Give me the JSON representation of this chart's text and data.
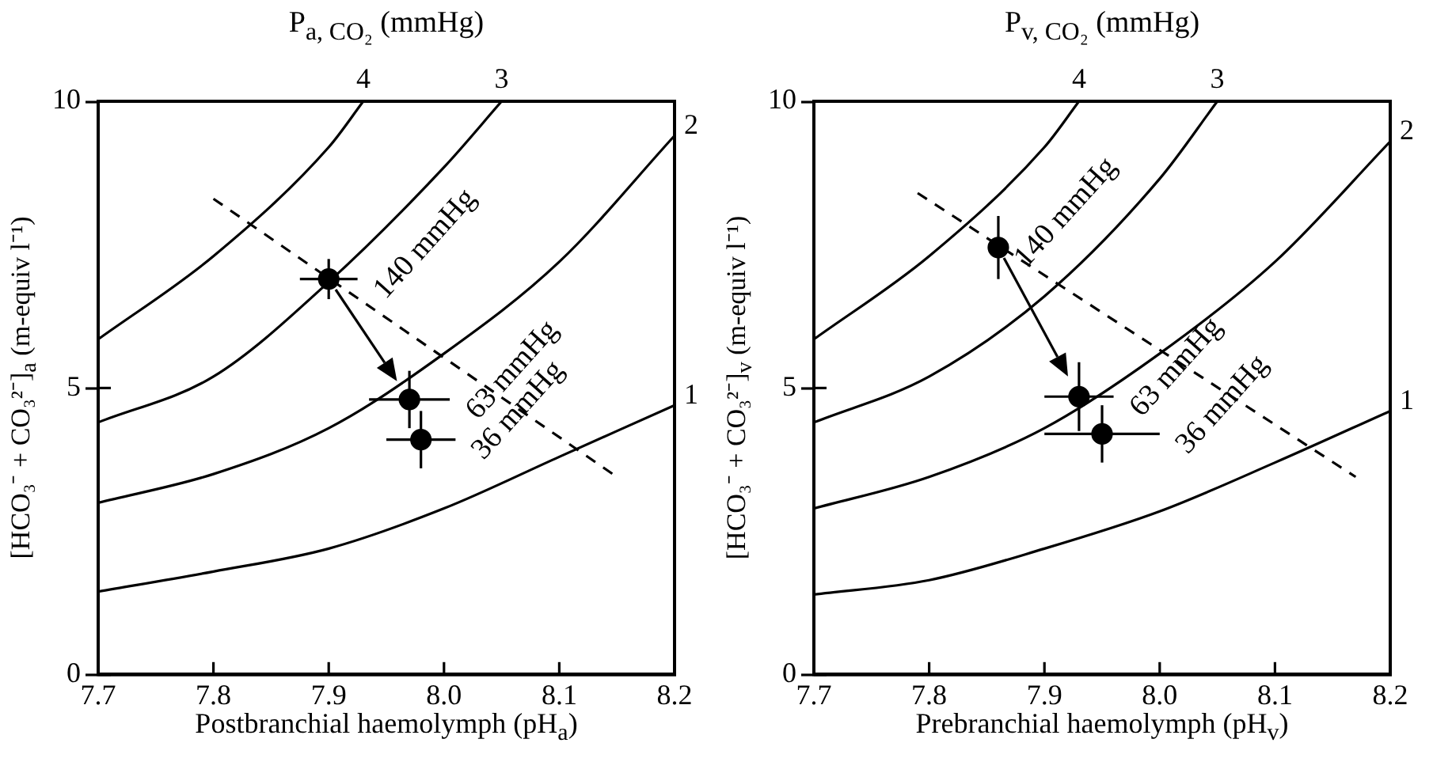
{
  "chart_data": [
    {
      "type": "line",
      "title": "P$_{a, CO₂}$ (mmHg)",
      "xlabel": "Postbranchial haemolymph (pH$_{a}$)",
      "ylabel": "[HCO₃⁻ + CO₃²⁻]$_{a}$ (m-equiv l⁻¹)",
      "xlim": [
        7.7,
        8.2
      ],
      "xticks": [
        7.7,
        7.8,
        7.9,
        {
          "value": 8.0,
          "label": "8.0"
        },
        8.1,
        8.2
      ],
      "ylim": [
        0,
        10
      ],
      "yticks": [
        0,
        5,
        10
      ],
      "grid": false,
      "annotations": [
        "140 mmHg",
        "63 mmHg",
        "36 mmHg"
      ],
      "series": [
        {
          "name": "1",
          "color": "#000000",
          "marker": "none",
          "line_style": "solid",
          "x": [
            7.7,
            7.8,
            7.9,
            8.0,
            8.1,
            8.2
          ],
          "values": [
            1.45,
            1.8,
            2.2,
            2.9,
            3.8,
            4.7
          ]
        },
        {
          "name": "2",
          "color": "#000000",
          "marker": "none",
          "line_style": "solid",
          "x": [
            7.7,
            7.8,
            7.9,
            8.0,
            8.1,
            8.2
          ],
          "values": [
            3.0,
            3.5,
            4.3,
            5.6,
            7.2,
            9.4
          ]
        },
        {
          "name": "3",
          "color": "#000000",
          "marker": "none",
          "line_style": "solid",
          "x": [
            7.7,
            7.8,
            7.9,
            8.0,
            8.05
          ],
          "values": [
            4.4,
            5.2,
            6.85,
            8.85,
            10
          ]
        },
        {
          "name": "4",
          "color": "#000000",
          "marker": "none",
          "line_style": "solid",
          "x": [
            7.7,
            7.8,
            7.9,
            7.93
          ],
          "values": [
            5.85,
            7.3,
            9.2,
            10
          ]
        },
        {
          "color": "#000000",
          "marker": "none",
          "line_style": "dashed",
          "x": [
            7.8,
            8.15
          ],
          "values": [
            8.3,
            3.45
          ]
        },
        {
          "type": "scatter",
          "color": "#000000",
          "marker": "circle",
          "x": [
            7.9,
            7.97,
            7.98
          ],
          "values": [
            6.9,
            4.8,
            4.1
          ],
          "errors": [
            0.35,
            0.5,
            0.5
          ],
          "xerrors": [
            0.025,
            0.035,
            0.03
          ]
        }
      ]
    },
    {
      "type": "line",
      "title": "P$_{v, CO₂}$ (mmHg)",
      "xlabel": "Prebranchial haemolymph (pH$_{v}$)",
      "ylabel": "[HCO₃⁻ + CO₃²⁻]$_{v}$ (m-equiv l⁻¹)",
      "xlim": [
        7.7,
        8.2
      ],
      "xticks": [
        7.7,
        7.8,
        7.9,
        {
          "value": 8.0,
          "label": "8.0"
        },
        8.1,
        8.2
      ],
      "ylim": [
        0,
        10
      ],
      "yticks": [
        0,
        5,
        10
      ],
      "grid": false,
      "annotations": [
        "140 mmHg",
        "63 mmHg",
        "36 mmHg"
      ],
      "series": [
        {
          "name": "1",
          "color": "#000000",
          "marker": "none",
          "line_style": "solid",
          "x": [
            7.7,
            7.8,
            7.9,
            8.0,
            8.1,
            8.2
          ],
          "values": [
            1.4,
            1.65,
            2.2,
            2.85,
            3.7,
            4.6
          ]
        },
        {
          "name": "2",
          "color": "#000000",
          "marker": "none",
          "line_style": "solid",
          "x": [
            7.7,
            7.8,
            7.9,
            8.0,
            8.1,
            8.2
          ],
          "values": [
            2.9,
            3.45,
            4.3,
            5.6,
            7.2,
            9.3
          ]
        },
        {
          "name": "3",
          "color": "#000000",
          "marker": "none",
          "line_style": "solid",
          "x": [
            7.7,
            7.8,
            7.9,
            8.0,
            8.05
          ],
          "values": [
            4.4,
            5.2,
            6.6,
            8.65,
            10
          ]
        },
        {
          "name": "4",
          "color": "#000000",
          "marker": "none",
          "line_style": "solid",
          "x": [
            7.7,
            7.8,
            7.9,
            7.93
          ],
          "values": [
            5.85,
            7.3,
            9.2,
            10
          ]
        },
        {
          "color": "#000000",
          "marker": "none",
          "line_style": "dashed",
          "x": [
            7.79,
            8.17
          ],
          "values": [
            8.4,
            3.45
          ]
        },
        {
          "type": "scatter",
          "color": "#000000",
          "marker": "circle",
          "x": [
            7.86,
            7.93,
            7.95
          ],
          "values": [
            7.45,
            4.85,
            4.2
          ],
          "errors": [
            0.55,
            0.6,
            0.5
          ],
          "xerrors": [
            null,
            0.03,
            0.05
          ]
        }
      ]
    }
  ]
}
